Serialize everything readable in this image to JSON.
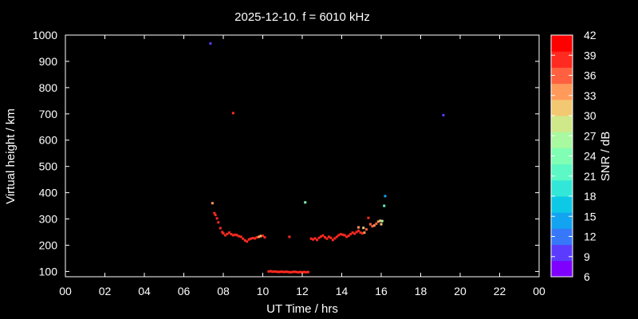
{
  "chart_data": {
    "type": "scatter",
    "title": "2025-12-10. f = 6010 kHz",
    "xlabel": "UT Time / hrs",
    "ylabel": "Virtual height / km",
    "xlim": [
      0,
      24
    ],
    "ylim": [
      80,
      1000
    ],
    "x_ticks": [
      "00",
      "02",
      "04",
      "06",
      "08",
      "10",
      "12",
      "14",
      "16",
      "18",
      "20",
      "22",
      "00"
    ],
    "y_ticks": [
      100,
      200,
      300,
      400,
      500,
      600,
      700,
      800,
      900,
      1000
    ],
    "grid": false,
    "colorbar": {
      "label": "SNR / dB",
      "min": 6,
      "max": 42,
      "step": 3,
      "ticks": [
        6,
        9,
        12,
        15,
        18,
        21,
        24,
        27,
        30,
        33,
        36,
        39,
        42
      ],
      "colors": [
        "#7f00ff",
        "#5b3cfe",
        "#3678f9",
        "#12a3f1",
        "#0ec9e6",
        "#32e7d7",
        "#5cf8c6",
        "#80ffb4",
        "#a8f99f",
        "#cfe889",
        "#f3c872",
        "#ff9a5a",
        "#ff6140",
        "#ff2a20",
        "#ff0000"
      ]
    },
    "points": [
      [
        7.35,
        968,
        9
      ],
      [
        8.5,
        703,
        38
      ],
      [
        19.15,
        695,
        9
      ],
      [
        12.15,
        363,
        24
      ],
      [
        16.2,
        387,
        15
      ],
      [
        16.15,
        350,
        21
      ],
      [
        7.45,
        360,
        33
      ],
      [
        7.55,
        322,
        39
      ],
      [
        7.6,
        315,
        39
      ],
      [
        7.68,
        302,
        38
      ],
      [
        7.75,
        287,
        39
      ],
      [
        7.85,
        265,
        39
      ],
      [
        7.95,
        250,
        39
      ],
      [
        8.0,
        245,
        39
      ],
      [
        8.1,
        238,
        39
      ],
      [
        8.2,
        243,
        39
      ],
      [
        8.3,
        248,
        39
      ],
      [
        8.4,
        242,
        39
      ],
      [
        8.5,
        238,
        39
      ],
      [
        8.6,
        240,
        39
      ],
      [
        8.7,
        238,
        38
      ],
      [
        8.8,
        234,
        39
      ],
      [
        8.9,
        232,
        39
      ],
      [
        9.0,
        225,
        39
      ],
      [
        9.1,
        218,
        39
      ],
      [
        9.2,
        214,
        39
      ],
      [
        9.3,
        222,
        39
      ],
      [
        9.4,
        225,
        39
      ],
      [
        9.5,
        227,
        39
      ],
      [
        9.6,
        226,
        39
      ],
      [
        9.7,
        230,
        39
      ],
      [
        9.8,
        232,
        33
      ],
      [
        9.9,
        235,
        30
      ],
      [
        10.0,
        236,
        39
      ],
      [
        10.1,
        230,
        39
      ],
      [
        11.35,
        232,
        39
      ],
      [
        10.3,
        100,
        39
      ],
      [
        10.4,
        101,
        39
      ],
      [
        10.5,
        99,
        39
      ],
      [
        10.6,
        100,
        39
      ],
      [
        10.7,
        99,
        39
      ],
      [
        10.8,
        98,
        39
      ],
      [
        10.9,
        99,
        39
      ],
      [
        11.0,
        99,
        39
      ],
      [
        11.1,
        98,
        39
      ],
      [
        11.2,
        99,
        39
      ],
      [
        11.3,
        98,
        39
      ],
      [
        11.4,
        97,
        39
      ],
      [
        11.5,
        98,
        39
      ],
      [
        11.6,
        99,
        39
      ],
      [
        11.7,
        98,
        39
      ],
      [
        11.8,
        97,
        39
      ],
      [
        11.9,
        98,
        39
      ],
      [
        12.0,
        97,
        39
      ],
      [
        12.1,
        98,
        39
      ],
      [
        12.2,
        97,
        39
      ],
      [
        12.3,
        98,
        39
      ],
      [
        12.45,
        225,
        39
      ],
      [
        12.55,
        222,
        39
      ],
      [
        12.65,
        226,
        39
      ],
      [
        12.75,
        220,
        39
      ],
      [
        12.85,
        228,
        39
      ],
      [
        12.95,
        233,
        39
      ],
      [
        13.05,
        237,
        39
      ],
      [
        13.15,
        230,
        39
      ],
      [
        13.25,
        225,
        39
      ],
      [
        13.35,
        232,
        39
      ],
      [
        13.45,
        228,
        39
      ],
      [
        13.55,
        220,
        39
      ],
      [
        13.65,
        226,
        39
      ],
      [
        13.75,
        232,
        39
      ],
      [
        13.85,
        238,
        39
      ],
      [
        13.95,
        242,
        39
      ],
      [
        14.05,
        240,
        39
      ],
      [
        14.15,
        238,
        39
      ],
      [
        14.25,
        232,
        39
      ],
      [
        14.35,
        236,
        39
      ],
      [
        14.45,
        242,
        39
      ],
      [
        14.55,
        248,
        39
      ],
      [
        14.65,
        244,
        39
      ],
      [
        14.75,
        250,
        39
      ],
      [
        14.85,
        255,
        39
      ],
      [
        14.95,
        248,
        39
      ],
      [
        15.05,
        245,
        39
      ],
      [
        15.15,
        248,
        33
      ],
      [
        15.25,
        260,
        36
      ],
      [
        15.35,
        304,
        39
      ],
      [
        15.45,
        280,
        36
      ],
      [
        15.55,
        272,
        36
      ],
      [
        15.65,
        275,
        33
      ],
      [
        15.75,
        282,
        36
      ],
      [
        15.85,
        290,
        33
      ],
      [
        15.95,
        293,
        30
      ],
      [
        16.05,
        292,
        27
      ],
      [
        15.1,
        266,
        30
      ],
      [
        14.85,
        268,
        33
      ],
      [
        16.0,
        280,
        30
      ]
    ]
  }
}
